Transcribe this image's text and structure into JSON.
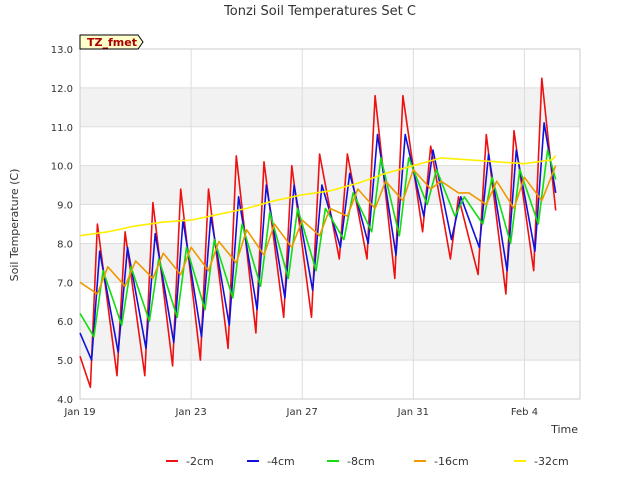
{
  "chart_data": {
    "type": "line",
    "title": "Tonzi Soil Temperatures Set C",
    "xlabel": "Time",
    "ylabel": "Soil Temperature (C)",
    "annotation": "TZ_fmet",
    "xlim": [
      "2020-01-19",
      "2020-02-06"
    ],
    "ylim": [
      4.0,
      13.0
    ],
    "yticks": [
      "4.0",
      "5.0",
      "6.0",
      "7.0",
      "8.0",
      "9.0",
      "10.0",
      "11.0",
      "12.0",
      "13.0"
    ],
    "xticks": [
      {
        "label": "Jan 19",
        "value": "2020-01-19"
      },
      {
        "label": "Jan 23",
        "value": "2020-01-23"
      },
      {
        "label": "Jan 27",
        "value": "2020-01-27"
      },
      {
        "label": "Jan 31",
        "value": "2020-01-31"
      },
      {
        "label": "Feb 4",
        "value": "2020-02-04"
      }
    ],
    "grid": true,
    "legend_position": "bottom",
    "series": [
      {
        "name": "-2cm",
        "color": "#ee1111",
        "points": [
          [
            "2020-01-19 00:00",
            5.1
          ],
          [
            "2020-01-19 09:00",
            4.3
          ],
          [
            "2020-01-19 15:00",
            8.5
          ],
          [
            "2020-01-20 08:00",
            4.6
          ],
          [
            "2020-01-20 15:00",
            8.3
          ],
          [
            "2020-01-21 08:00",
            4.6
          ],
          [
            "2020-01-21 15:00",
            9.05
          ],
          [
            "2020-01-22 08:00",
            4.85
          ],
          [
            "2020-01-22 15:00",
            9.4
          ],
          [
            "2020-01-23 08:00",
            5.0
          ],
          [
            "2020-01-23 15:00",
            9.4
          ],
          [
            "2020-01-24 08:00",
            5.3
          ],
          [
            "2020-01-24 15:00",
            10.25
          ],
          [
            "2020-01-25 08:00",
            5.7
          ],
          [
            "2020-01-25 15:00",
            10.1
          ],
          [
            "2020-01-26 08:00",
            6.1
          ],
          [
            "2020-01-26 15:00",
            10.0
          ],
          [
            "2020-01-27 08:00",
            6.1
          ],
          [
            "2020-01-27 15:00",
            10.3
          ],
          [
            "2020-01-28 08:00",
            7.6
          ],
          [
            "2020-01-28 15:00",
            10.3
          ],
          [
            "2020-01-29 08:00",
            7.6
          ],
          [
            "2020-01-29 15:00",
            11.8
          ],
          [
            "2020-01-30 08:00",
            7.1
          ],
          [
            "2020-01-30 15:00",
            11.8
          ],
          [
            "2020-01-31 08:00",
            8.3
          ],
          [
            "2020-01-31 15:00",
            10.5
          ],
          [
            "2020-02-01 08:00",
            7.6
          ],
          [
            "2020-02-01 15:00",
            9.2
          ],
          [
            "2020-02-02 08:00",
            7.2
          ],
          [
            "2020-02-02 15:00",
            10.8
          ],
          [
            "2020-02-03 08:00",
            6.7
          ],
          [
            "2020-02-03 15:00",
            10.9
          ],
          [
            "2020-02-04 08:00",
            7.3
          ],
          [
            "2020-02-04 15:00",
            12.25
          ],
          [
            "2020-02-05 03:00",
            8.85
          ]
        ]
      },
      {
        "name": "-4cm",
        "color": "#1111dd",
        "points": [
          [
            "2020-01-19 00:00",
            5.7
          ],
          [
            "2020-01-19 10:00",
            5.0
          ],
          [
            "2020-01-19 17:00",
            7.8
          ],
          [
            "2020-01-20 09:00",
            5.2
          ],
          [
            "2020-01-20 17:00",
            7.9
          ],
          [
            "2020-01-21 09:00",
            5.3
          ],
          [
            "2020-01-21 17:00",
            8.25
          ],
          [
            "2020-01-22 09:00",
            5.45
          ],
          [
            "2020-01-22 17:00",
            8.6
          ],
          [
            "2020-01-23 09:00",
            5.6
          ],
          [
            "2020-01-23 17:00",
            8.7
          ],
          [
            "2020-01-24 09:00",
            5.9
          ],
          [
            "2020-01-24 17:00",
            9.2
          ],
          [
            "2020-01-25 09:00",
            6.3
          ],
          [
            "2020-01-25 17:00",
            9.5
          ],
          [
            "2020-01-26 09:00",
            6.6
          ],
          [
            "2020-01-26 17:00",
            9.5
          ],
          [
            "2020-01-27 09:00",
            6.8
          ],
          [
            "2020-01-27 17:00",
            9.5
          ],
          [
            "2020-01-28 09:00",
            7.9
          ],
          [
            "2020-01-28 17:00",
            9.8
          ],
          [
            "2020-01-29 09:00",
            8.0
          ],
          [
            "2020-01-29 17:00",
            10.8
          ],
          [
            "2020-01-30 09:00",
            7.7
          ],
          [
            "2020-01-30 17:00",
            10.8
          ],
          [
            "2020-01-31 09:00",
            8.7
          ],
          [
            "2020-01-31 17:00",
            10.4
          ],
          [
            "2020-02-01 09:00",
            8.1
          ],
          [
            "2020-02-01 17:00",
            9.2
          ],
          [
            "2020-02-02 09:00",
            7.9
          ],
          [
            "2020-02-02 17:00",
            10.3
          ],
          [
            "2020-02-03 09:00",
            7.3
          ],
          [
            "2020-02-03 17:00",
            10.4
          ],
          [
            "2020-02-04 09:00",
            7.8
          ],
          [
            "2020-02-04 17:00",
            11.1
          ],
          [
            "2020-02-05 03:00",
            9.3
          ]
        ]
      },
      {
        "name": "-8cm",
        "color": "#11dd11",
        "points": [
          [
            "2020-01-19 00:00",
            6.2
          ],
          [
            "2020-01-19 12:00",
            5.6
          ],
          [
            "2020-01-19 20:00",
            7.3
          ],
          [
            "2020-01-20 12:00",
            5.9
          ],
          [
            "2020-01-20 20:00",
            7.4
          ],
          [
            "2020-01-21 12:00",
            6.0
          ],
          [
            "2020-01-21 20:00",
            7.6
          ],
          [
            "2020-01-22 12:00",
            6.1
          ],
          [
            "2020-01-22 20:00",
            7.9
          ],
          [
            "2020-01-23 12:00",
            6.3
          ],
          [
            "2020-01-23 20:00",
            8.1
          ],
          [
            "2020-01-24 12:00",
            6.6
          ],
          [
            "2020-01-24 20:00",
            8.5
          ],
          [
            "2020-01-25 12:00",
            6.9
          ],
          [
            "2020-01-25 20:00",
            8.8
          ],
          [
            "2020-01-26 12:00",
            7.1
          ],
          [
            "2020-01-26 20:00",
            8.9
          ],
          [
            "2020-01-27 12:00",
            7.3
          ],
          [
            "2020-01-27 20:00",
            8.9
          ],
          [
            "2020-01-28 12:00",
            8.1
          ],
          [
            "2020-01-28 20:00",
            9.3
          ],
          [
            "2020-01-29 12:00",
            8.3
          ],
          [
            "2020-01-29 20:00",
            10.2
          ],
          [
            "2020-01-30 12:00",
            8.2
          ],
          [
            "2020-01-30 20:00",
            10.2
          ],
          [
            "2020-01-31 12:00",
            9.0
          ],
          [
            "2020-01-31 20:00",
            9.9
          ],
          [
            "2020-02-01 12:00",
            8.7
          ],
          [
            "2020-02-01 20:00",
            9.2
          ],
          [
            "2020-02-02 12:00",
            8.5
          ],
          [
            "2020-02-02 20:00",
            9.7
          ],
          [
            "2020-02-03 12:00",
            8.0
          ],
          [
            "2020-02-03 20:00",
            9.9
          ],
          [
            "2020-02-04 12:00",
            8.5
          ],
          [
            "2020-02-04 20:00",
            10.4
          ],
          [
            "2020-02-05 03:00",
            9.65
          ]
        ]
      },
      {
        "name": "-16cm",
        "color": "#ee9900",
        "points": [
          [
            "2020-01-19 00:00",
            7.0
          ],
          [
            "2020-01-19 15:00",
            6.7
          ],
          [
            "2020-01-20 00:00",
            7.4
          ],
          [
            "2020-01-20 15:00",
            6.9
          ],
          [
            "2020-01-21 00:00",
            7.55
          ],
          [
            "2020-01-21 15:00",
            7.1
          ],
          [
            "2020-01-22 00:00",
            7.75
          ],
          [
            "2020-01-22 15:00",
            7.2
          ],
          [
            "2020-01-23 00:00",
            7.9
          ],
          [
            "2020-01-23 15:00",
            7.3
          ],
          [
            "2020-01-24 00:00",
            8.05
          ],
          [
            "2020-01-24 15:00",
            7.5
          ],
          [
            "2020-01-25 00:00",
            8.35
          ],
          [
            "2020-01-25 15:00",
            7.7
          ],
          [
            "2020-01-26 00:00",
            8.5
          ],
          [
            "2020-01-26 15:00",
            7.9
          ],
          [
            "2020-01-27 00:00",
            8.6
          ],
          [
            "2020-01-27 15:00",
            8.2
          ],
          [
            "2020-01-28 00:00",
            8.9
          ],
          [
            "2020-01-28 15:00",
            8.7
          ],
          [
            "2020-01-29 00:00",
            9.4
          ],
          [
            "2020-01-29 15:00",
            8.9
          ],
          [
            "2020-01-30 00:00",
            9.6
          ],
          [
            "2020-01-30 15:00",
            9.1
          ],
          [
            "2020-01-31 00:00",
            9.9
          ],
          [
            "2020-01-31 15:00",
            9.4
          ],
          [
            "2020-02-01 00:00",
            9.6
          ],
          [
            "2020-02-01 15:00",
            9.3
          ],
          [
            "2020-02-02 00:00",
            9.3
          ],
          [
            "2020-02-02 15:00",
            9.0
          ],
          [
            "2020-02-03 00:00",
            9.6
          ],
          [
            "2020-02-03 15:00",
            8.9
          ],
          [
            "2020-02-04 00:00",
            9.7
          ],
          [
            "2020-02-04 15:00",
            9.1
          ],
          [
            "2020-02-05 03:00",
            10.0
          ]
        ]
      },
      {
        "name": "-32cm",
        "color": "#ffee00",
        "points": [
          [
            "2020-01-19 00:00",
            8.2
          ],
          [
            "2020-01-20 00:00",
            8.3
          ],
          [
            "2020-01-21 00:00",
            8.45
          ],
          [
            "2020-01-22 00:00",
            8.55
          ],
          [
            "2020-01-23 00:00",
            8.6
          ],
          [
            "2020-01-24 00:00",
            8.75
          ],
          [
            "2020-01-25 00:00",
            8.9
          ],
          [
            "2020-01-26 00:00",
            9.1
          ],
          [
            "2020-01-27 00:00",
            9.25
          ],
          [
            "2020-01-28 00:00",
            9.35
          ],
          [
            "2020-01-29 00:00",
            9.55
          ],
          [
            "2020-01-30 00:00",
            9.8
          ],
          [
            "2020-01-31 00:00",
            10.0
          ],
          [
            "2020-02-01 00:00",
            10.2
          ],
          [
            "2020-02-02 00:00",
            10.15
          ],
          [
            "2020-02-03 00:00",
            10.1
          ],
          [
            "2020-02-04 00:00",
            10.05
          ],
          [
            "2020-02-05 00:00",
            10.15
          ],
          [
            "2020-02-05 03:00",
            10.25
          ]
        ]
      }
    ]
  }
}
